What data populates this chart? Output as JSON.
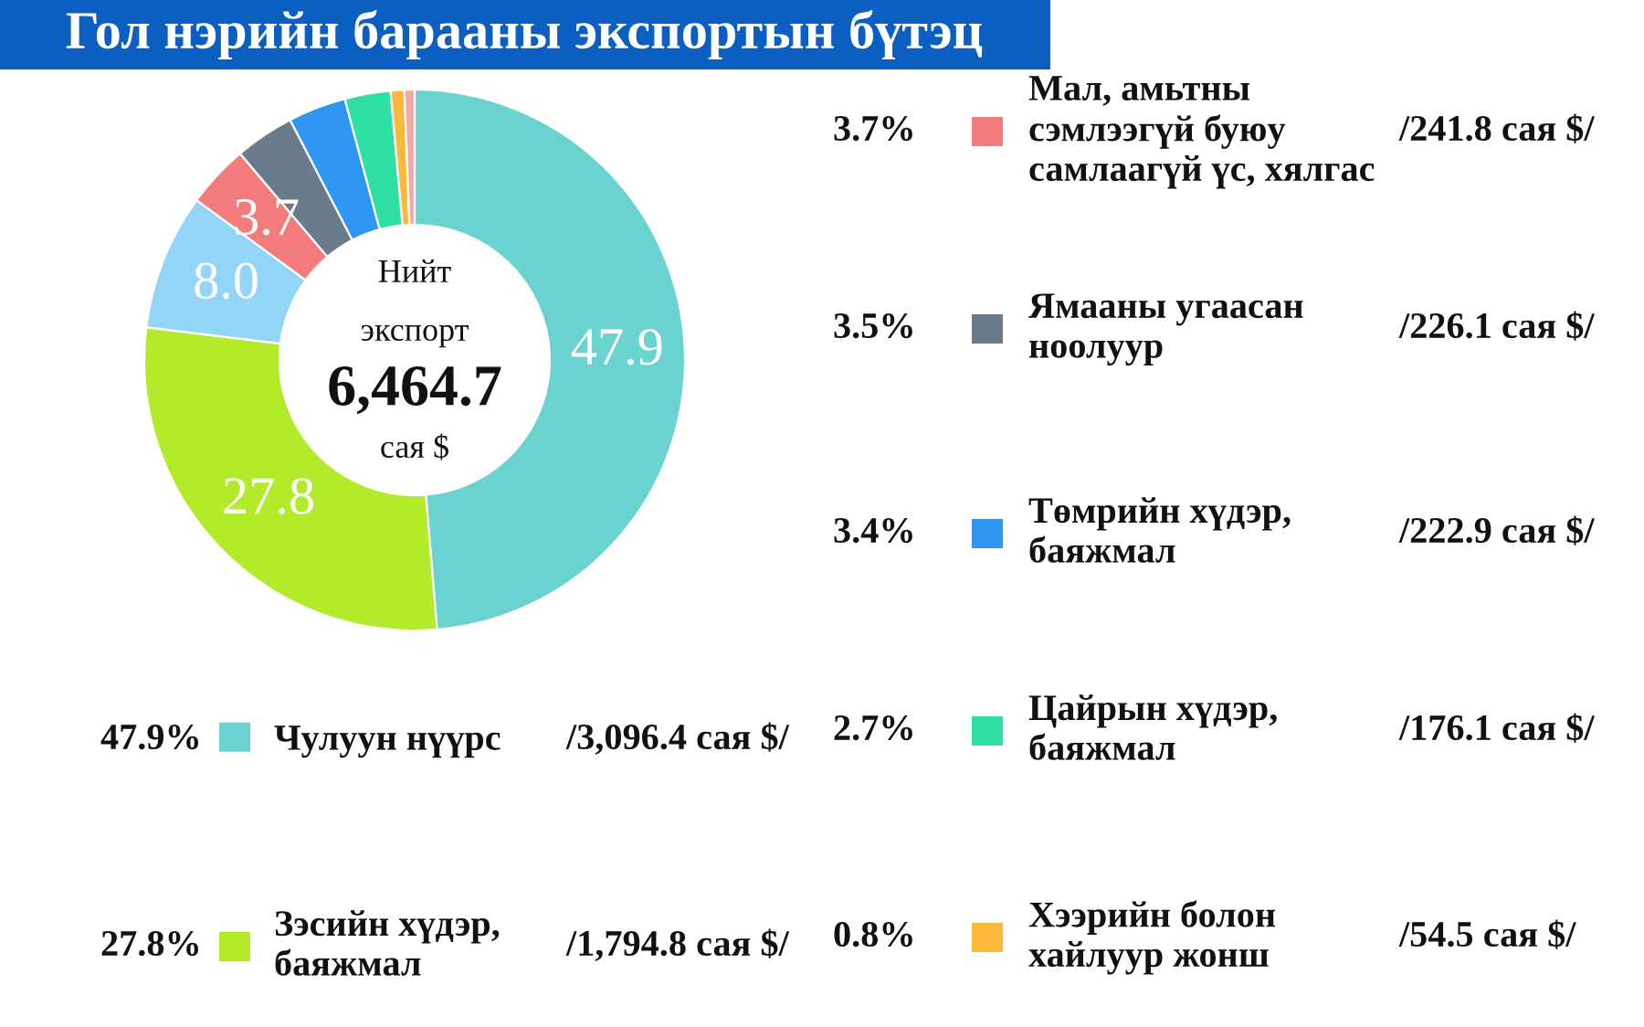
{
  "chart_data": {
    "type": "donut",
    "title": "Гол нэрийн барааны экспортын бүтэц",
    "categories": [
      "Чулуун нүүрс",
      "Зэсийн хүдэр,\nбаяжмал",
      null,
      "Мал, амьтны\nсэмлээгүй буюу\nсамлаагүй үс, хялгас",
      "Ямааны угаасан\nноолуур",
      "Төмрийн хүдэр,\nбаяжмал",
      "Цайрын хүдэр,\nбаяжмал",
      "Хээрийн болон\nхайлуур жонш",
      null
    ],
    "values": [
      47.9,
      27.8,
      8.0,
      3.7,
      3.5,
      3.4,
      2.7,
      0.8,
      0.6
    ],
    "colors": [
      "#6bd3cf",
      "#b3ea29",
      "#92d5f7",
      "#f47b7b",
      "#6a7c8b",
      "#2f97f2",
      "#2fe0a2",
      "#fbb83b",
      "#f3a8a8"
    ],
    "value_labels": [
      "47.9",
      "27.8",
      "8.0",
      "3.7",
      null,
      null,
      null,
      null,
      null
    ],
    "legend": "right",
    "annotations": [
      "47.9%",
      "/3,096.4 сая $/",
      "27.8%",
      "/1,794.8 сая $/",
      "3.7%",
      "/241.8 сая $/",
      "3.5%",
      "/226.1 сая $/",
      "3.4%",
      "/222.9 сая $/",
      "2.7%",
      "/176.1 сая $/",
      "0.8%",
      "/54.5 сая $/",
      "Нийт",
      "экспорт",
      "6,464.7",
      "сая $"
    ]
  }
}
